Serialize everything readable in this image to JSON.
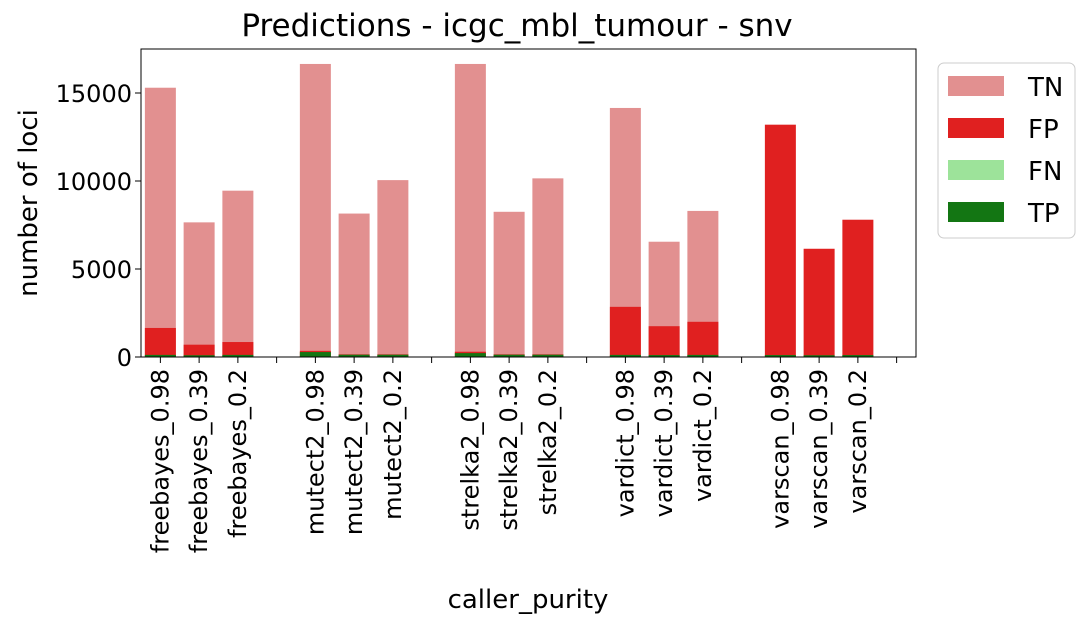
{
  "chart_data": {
    "type": "bar",
    "title": "Predictions - icgc_mbl_tumour - snv",
    "xlabel": "caller_purity",
    "ylabel": "number of loci",
    "ylim": [
      0,
      17500
    ],
    "yticks": [
      0,
      5000,
      10000,
      15000
    ],
    "stacked": "overlaid",
    "categories": [
      "freebayes_0.98",
      "freebayes_0.39",
      "freebayes_0.2",
      "",
      "mutect2_0.98",
      "mutect2_0.39",
      "mutect2_0.2",
      "",
      "strelka2_0.98",
      "strelka2_0.39",
      "strelka2_0.2",
      "",
      "vardict_0.98",
      "vardict_0.39",
      "vardict_0.2",
      "",
      "varscan_0.98",
      "varscan_0.39",
      "varscan_0.2",
      ""
    ],
    "series": [
      {
        "name": "TN",
        "color": "#e29090",
        "values": [
          15300,
          7650,
          9450,
          null,
          16650,
          8150,
          10050,
          null,
          16650,
          8250,
          10150,
          null,
          14150,
          6550,
          8300,
          null,
          null,
          null,
          null,
          null
        ]
      },
      {
        "name": "FP",
        "color": "#e02020",
        "values": [
          1650,
          700,
          850,
          null,
          350,
          150,
          150,
          null,
          300,
          150,
          150,
          null,
          2850,
          1750,
          2000,
          null,
          13200,
          6150,
          7800,
          null
        ]
      },
      {
        "name": "FN",
        "color": "#9de39a",
        "values": [
          0,
          0,
          0,
          null,
          0,
          0,
          0,
          null,
          0,
          0,
          0,
          null,
          0,
          0,
          0,
          null,
          0,
          0,
          0,
          null
        ]
      },
      {
        "name": "TP",
        "color": "#137613",
        "values": [
          120,
          100,
          120,
          null,
          280,
          130,
          130,
          null,
          220,
          130,
          130,
          null,
          120,
          110,
          120,
          null,
          110,
          100,
          110,
          null
        ]
      }
    ],
    "legend": {
      "placement": "outside-top-right",
      "entries": [
        "TN",
        "FP",
        "FN",
        "TP"
      ]
    },
    "grid": false
  }
}
